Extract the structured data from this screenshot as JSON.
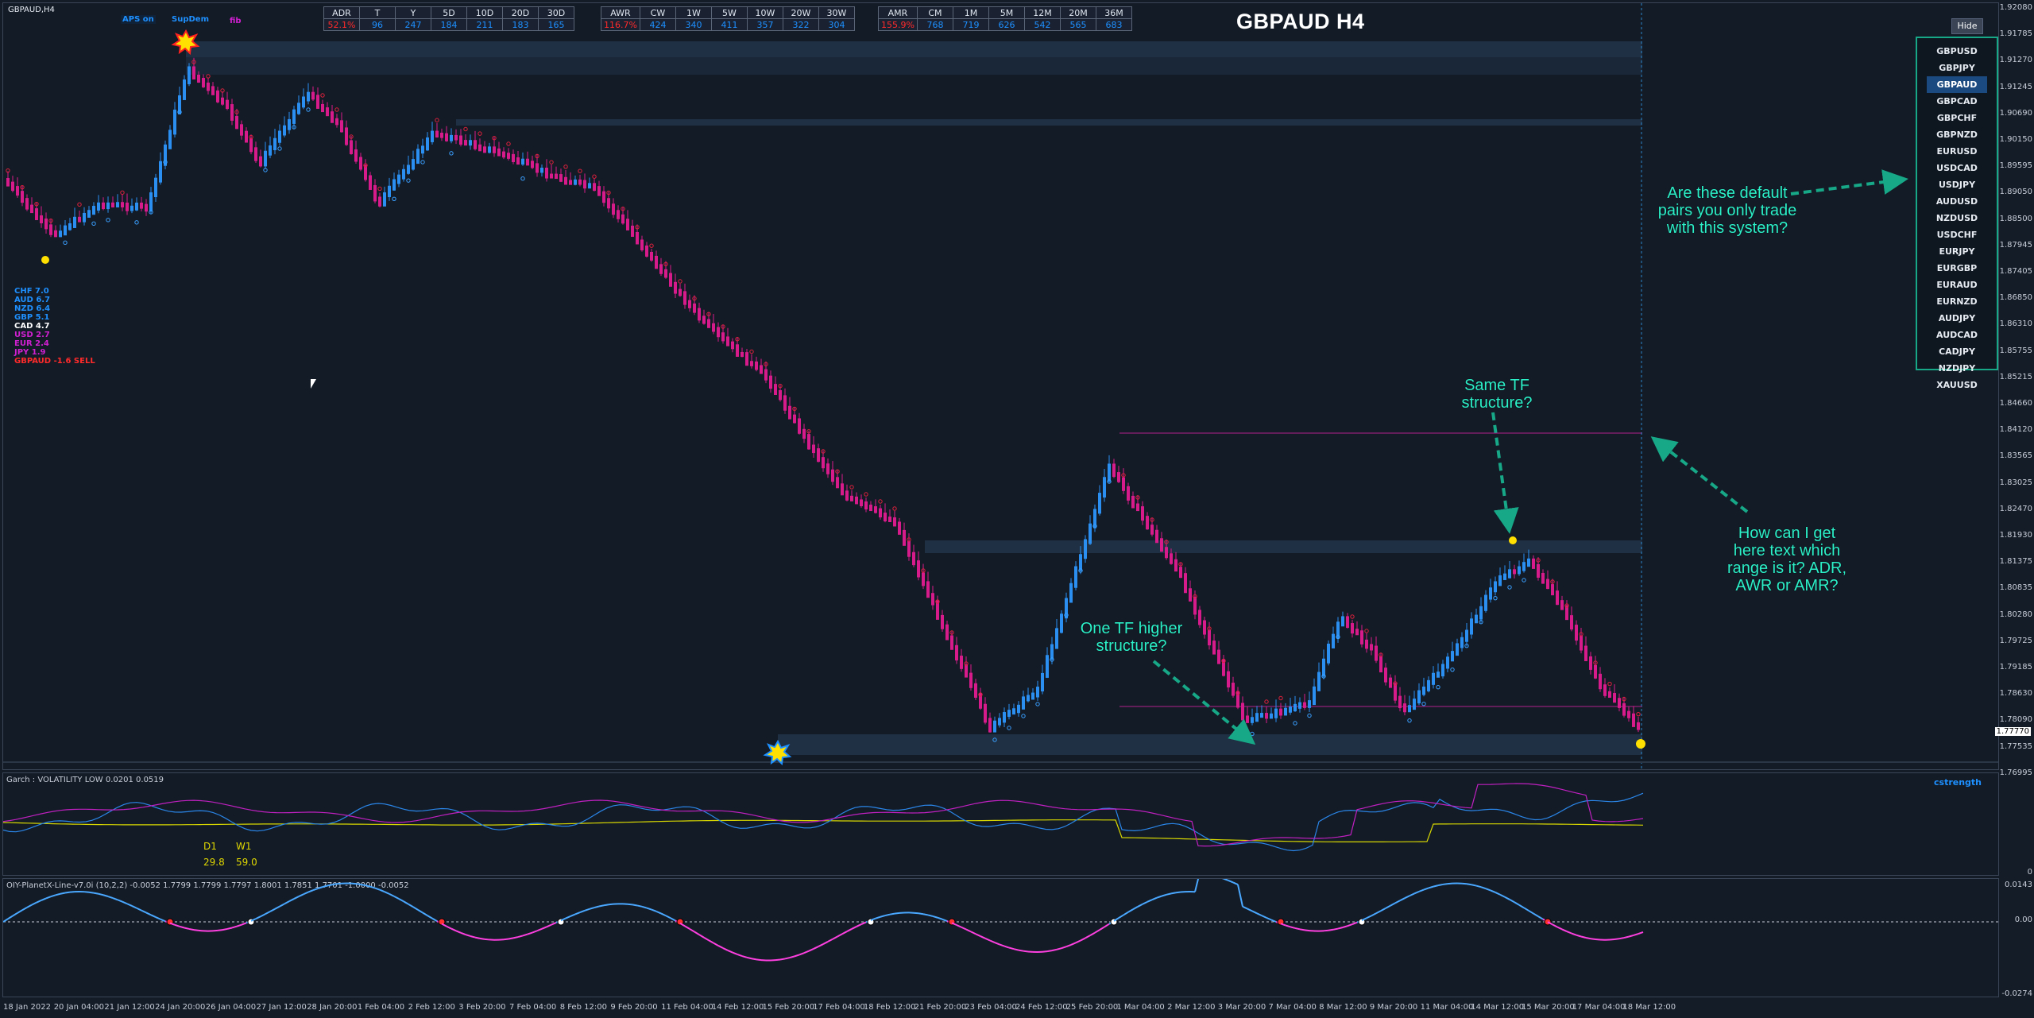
{
  "symbol_label": "GBPAUD,H4",
  "chart_title": "GBPAUD H4",
  "top_buttons": {
    "aps": "APS on",
    "supdem": "SupDem",
    "fib": "fib"
  },
  "table_adr": {
    "headers": [
      "ADR",
      "T",
      "Y",
      "5D",
      "10D",
      "20D",
      "30D"
    ],
    "values": [
      "52.1%",
      "96",
      "247",
      "184",
      "211",
      "183",
      "165"
    ]
  },
  "table_awr": {
    "headers": [
      "AWR",
      "CW",
      "1W",
      "5W",
      "10W",
      "20W",
      "30W"
    ],
    "values": [
      "116.7%",
      "424",
      "340",
      "411",
      "357",
      "322",
      "304"
    ]
  },
  "table_amr": {
    "headers": [
      "AMR",
      "CM",
      "1M",
      "5M",
      "12M",
      "20M",
      "36M"
    ],
    "values": [
      "155.9%",
      "768",
      "719",
      "626",
      "542",
      "565",
      "683"
    ]
  },
  "currency_strength": [
    {
      "label": "CHF",
      "value": "7.0",
      "color": "#1e90ff"
    },
    {
      "label": "AUD",
      "value": "6.7",
      "color": "#1e90ff"
    },
    {
      "label": "NZD",
      "value": "6.4",
      "color": "#1e90ff"
    },
    {
      "label": "GBP",
      "value": "5.1",
      "color": "#1e90ff"
    },
    {
      "label": "CAD",
      "value": "4.7",
      "color": "#ffffff"
    },
    {
      "label": "USD",
      "value": "2.7",
      "color": "#d020d0"
    },
    {
      "label": "EUR",
      "value": "2.4",
      "color": "#d020d0"
    },
    {
      "label": "JPY",
      "value": "1.9",
      "color": "#d020d0"
    },
    {
      "label": "GBPAUD",
      "value": "-1.6 SELL",
      "color": "#ff2a2a"
    }
  ],
  "hide_button": "Hide",
  "pairs": [
    "GBPUSD",
    "GBPJPY",
    "GBPAUD",
    "GBPCAD",
    "GBPCHF",
    "GBPNZD",
    "EURUSD",
    "USDCAD",
    "USDJPY",
    "AUDUSD",
    "NZDUSD",
    "USDCHF",
    "EURJPY",
    "EURGBP",
    "EURAUD",
    "EURNZD",
    "AUDJPY",
    "AUDCAD",
    "CADJPY",
    "NZDJPY",
    "XAUUSD"
  ],
  "active_pair": "GBPAUD",
  "notes": {
    "default_pairs": "Are these default\npairs you only trade\nwith this system?",
    "same_tf": "Same TF\nstructure?",
    "range_text": "How can I get\nhere text which\nrange is it? ADR,\nAWR or AMR?",
    "one_tf_higher": "One TF higher\nstructure?"
  },
  "price_axis": [
    "1.92080",
    "1.91785",
    "1.91270",
    "1.91245",
    "1.90690",
    "1.90150",
    "1.89595",
    "1.89050",
    "1.88500",
    "1.87945",
    "1.87405",
    "1.86850",
    "1.86310",
    "1.85755",
    "1.85215",
    "1.84660",
    "1.84120",
    "1.83565",
    "1.83025",
    "1.82470",
    "1.81930",
    "1.81375",
    "1.80835",
    "1.80280",
    "1.79725",
    "1.79185",
    "1.78630",
    "1.78090",
    "1.77535",
    "1.76995"
  ],
  "current_price": "1.77770",
  "garch": {
    "label": "Garch : VOLATILITY LOW 0.0201 0.0519",
    "d1_label": "D1",
    "w1_label": "W1",
    "d1_value": "29.8",
    "w1_value": "59.0",
    "strength_label": "cstrength",
    "axis_zero": "0"
  },
  "oiy": {
    "label": "OIY-PlanetX-Line-v7.0i (10,2,2) -0.0052 1.7799 1.7799 1.7797 1.8001 1.7851 1.7701 -1.0000 -0.0052",
    "axis_top": "0.0143",
    "axis_mid": "0.00",
    "axis_bottom": "-0.0274"
  },
  "time_axis": [
    "18 Jan 2022",
    "20 Jan 04:00",
    "21 Jan 12:00",
    "24 Jan 20:00",
    "26 Jan 04:00",
    "27 Jan 12:00",
    "28 Jan 20:00",
    "1 Feb 04:00",
    "2 Feb 12:00",
    "3 Feb 20:00",
    "7 Feb 04:00",
    "8 Feb 12:00",
    "9 Feb 20:00",
    "11 Feb 04:00",
    "14 Feb 12:00",
    "15 Feb 20:00",
    "17 Feb 04:00",
    "18 Feb 12:00",
    "21 Feb 20:00",
    "23 Feb 04:00",
    "24 Feb 12:00",
    "25 Feb 20:00",
    "1 Mar 04:00",
    "2 Mar 12:00",
    "3 Mar 20:00",
    "7 Mar 04:00",
    "8 Mar 12:00",
    "9 Mar 20:00",
    "11 Mar 04:00",
    "14 Mar 12:00",
    "15 Mar 20:00",
    "17 Mar 04:00",
    "18 Mar 12:00"
  ],
  "colors": {
    "bull": "#2a8ff0",
    "bear": "#d81b8a",
    "panel_bg": "#131b27",
    "accent_note": "#2cf0c8",
    "zone": "#22344a"
  }
}
